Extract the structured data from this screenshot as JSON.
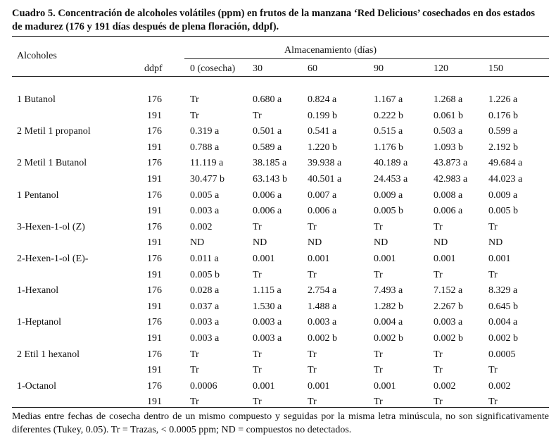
{
  "table": {
    "caption": "Cuadro 5. Concentración de alcoholes volátiles (ppm) en frutos de la manzana ‘Red Delicious’ cosechados en dos estados de madurez (176 y 191 días después de plena floración, ddpf).",
    "header": {
      "alcoholes": "Alcoholes",
      "ddpf": "ddpf",
      "almacenamiento": "Almacenamiento (días)",
      "days": [
        "0 (cosecha)",
        "30",
        "60",
        "90",
        "120",
        "150"
      ]
    },
    "rows": [
      {
        "name": "1 Butanol",
        "r176": [
          "Tr",
          "0.680 a",
          "0.824 a",
          "1.167 a",
          "1.268 a",
          "1.226 a"
        ],
        "r191": [
          "Tr",
          "Tr",
          "0.199 b",
          "0.222 b",
          "0.061 b",
          "0.176 b"
        ]
      },
      {
        "name": "2 Metil 1 propanol",
        "r176": [
          "0.319 a",
          "0.501 a",
          "0.541 a",
          "0.515 a",
          "0.503 a",
          "0.599 a"
        ],
        "r191": [
          "0.788 a",
          "0.589 a",
          "1.220 b",
          "1.176 b",
          "1.093 b",
          "2.192 b"
        ]
      },
      {
        "name": " 2 Metil 1 Butanol",
        "r176": [
          "11.119 a",
          "38.185 a",
          "39.938 a",
          "40.189 a",
          "43.873 a",
          "49.684 a"
        ],
        "r191": [
          "30.477 b",
          "63.143 b",
          "40.501 a",
          "24.453 a",
          "42.983 a",
          "44.023 a"
        ]
      },
      {
        "name": "1 Pentanol",
        "r176": [
          "0.005 a",
          "0.006 a",
          "0.007 a",
          "0.009 a",
          "0.008 a",
          "0.009 a"
        ],
        "r191": [
          "0.003 a",
          "0.006 a",
          "0.006 a",
          "0.005 b",
          "0.006 a",
          "0.005 b"
        ]
      },
      {
        "name": "3-Hexen-1-ol (Z)",
        "r176": [
          "0.002",
          "Tr",
          "Tr",
          "Tr",
          "Tr",
          "Tr"
        ],
        "r191": [
          "ND",
          "ND",
          "ND",
          "ND",
          "ND",
          "ND"
        ]
      },
      {
        "name": "2-Hexen-1-ol (E)-",
        "r176": [
          "0.011 a",
          "0.001",
          "0.001",
          "0.001",
          "0.001",
          "0.001"
        ],
        "r191": [
          "0.005 b",
          "Tr",
          "Tr",
          "Tr",
          "Tr",
          "Tr"
        ]
      },
      {
        "name": "1-Hexanol",
        "r176": [
          "0.028 a",
          "1.115 a",
          "2.754 a",
          "7.493 a",
          "7.152 a",
          "8.329 a"
        ],
        "r191": [
          "0.037 a",
          "1.530 a",
          "1.488 a",
          "1.282 b",
          "2.267 b",
          "0.645 b"
        ]
      },
      {
        "name": "1-Heptanol",
        "r176": [
          "0.003 a",
          "0.003 a",
          "0.003 a",
          "0.004 a",
          "0.003 a",
          "0.004 a"
        ],
        "r191": [
          "0.003 a",
          "0.003 a",
          "0.002 b",
          "0.002 b",
          "0.002 b",
          "0.002 b"
        ]
      },
      {
        "name": "2 Etil 1 hexanol",
        "r176": [
          "Tr",
          "Tr",
          "Tr",
          "Tr",
          "Tr",
          "0.0005"
        ],
        "r191": [
          "Tr",
          "Tr",
          "Tr",
          "Tr",
          "Tr",
          "Tr"
        ]
      },
      {
        "name": "1-Octanol",
        "r176": [
          "0.0006",
          "0.001",
          "0.001",
          "0.001",
          "0.002",
          "0.002"
        ],
        "r191": [
          "Tr",
          "Tr",
          "Tr",
          "Tr",
          "Tr",
          "Tr"
        ]
      }
    ],
    "ddpf_values": [
      "176",
      "191"
    ],
    "footnote": "Medias entre fechas de cosecha dentro de un mismo compuesto y seguidas por la misma letra minúscula,  no son significativamente diferentes (Tukey, 0.05). Tr = Trazas, < 0.0005 ppm; ND = compuestos no detectados."
  }
}
